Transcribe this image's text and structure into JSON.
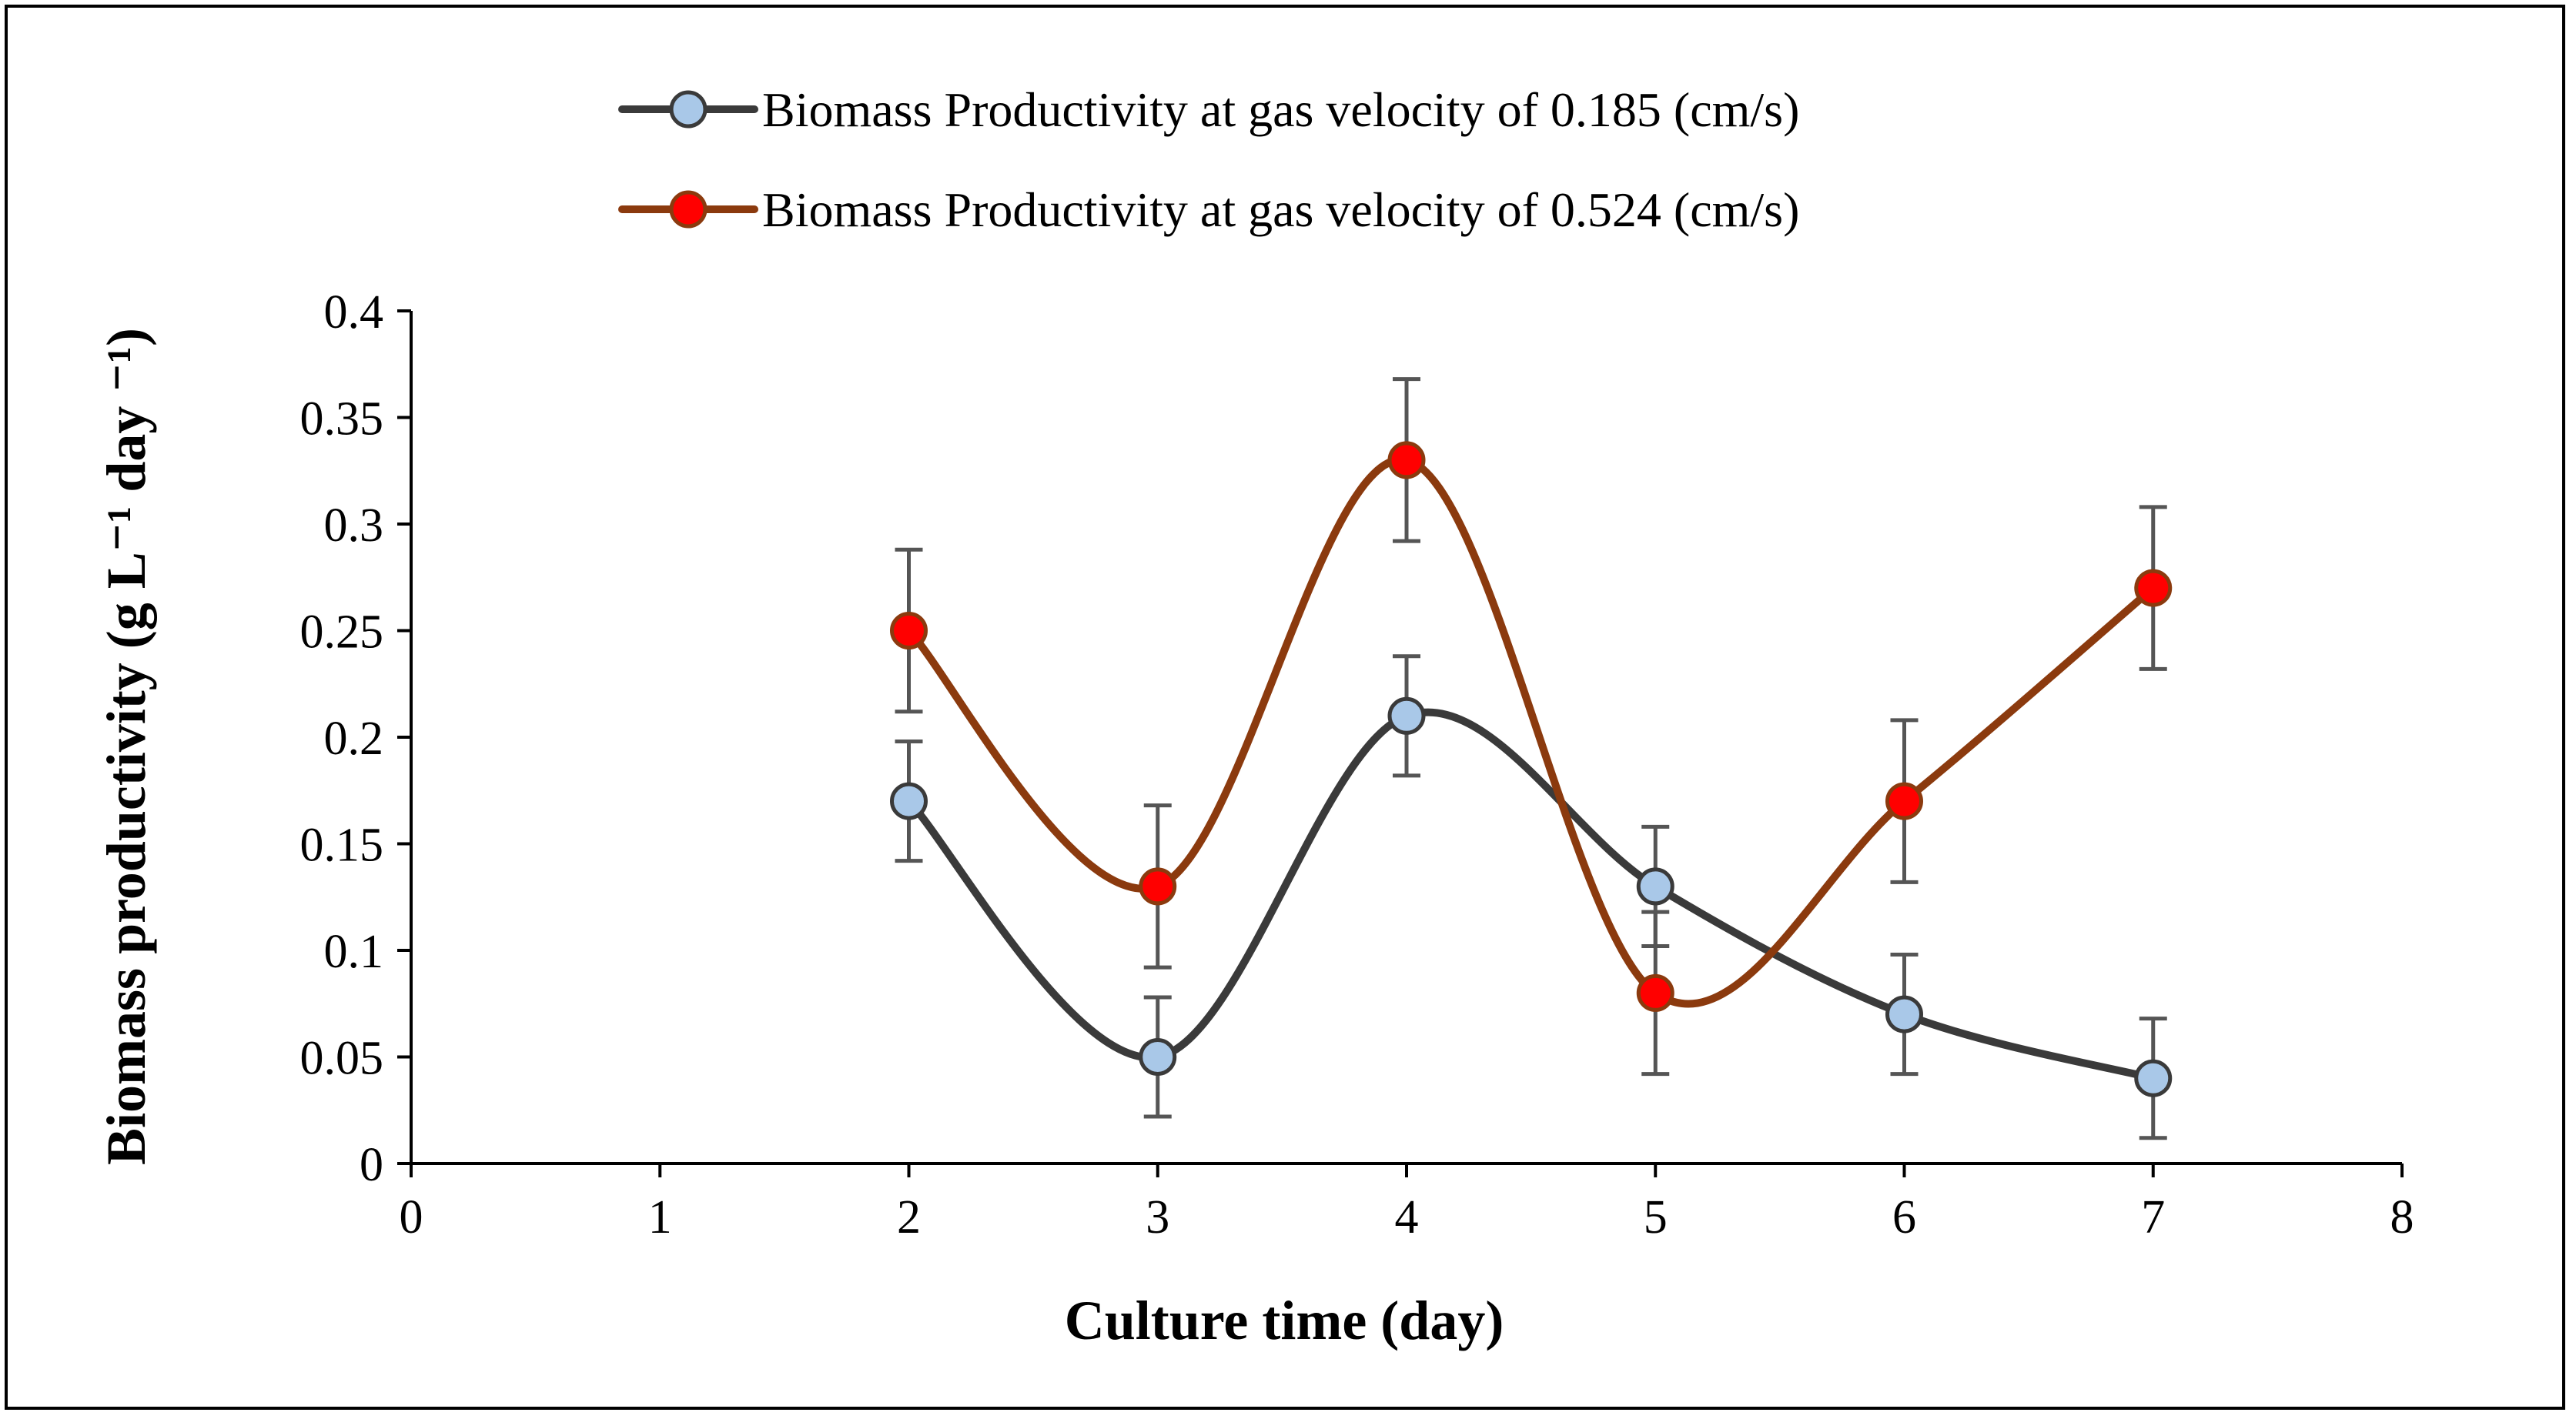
{
  "chart_data": {
    "type": "line",
    "title": "",
    "xlabel": "Culture time (day)",
    "ylabel": "Biomass productivity (g L⁻¹ day ⁻¹)",
    "xlim": [
      0,
      8
    ],
    "ylim": [
      0,
      0.4
    ],
    "x_ticks": [
      0,
      1,
      2,
      3,
      4,
      5,
      6,
      7,
      8
    ],
    "x_tick_labels": [
      "0",
      "1",
      "2",
      "3",
      "4",
      "5",
      "6",
      "7",
      "8"
    ],
    "y_ticks": [
      0,
      0.05,
      0.1,
      0.15,
      0.2,
      0.25,
      0.3,
      0.35,
      0.4
    ],
    "y_tick_labels": [
      "0",
      "0.05",
      "0.1",
      "0.15",
      "0.2",
      "0.25",
      "0.3",
      "0.35",
      "0.4"
    ],
    "grid": false,
    "legend_position": "top-center",
    "series": [
      {
        "name": "Biomass Productivity at gas velocity of 0.185 (cm/s)",
        "x": [
          2,
          3,
          4,
          5,
          6,
          7
        ],
        "values": [
          0.17,
          0.05,
          0.21,
          0.13,
          0.07,
          0.04
        ],
        "error": [
          0.028,
          0.028,
          0.028,
          0.028,
          0.028,
          0.028
        ],
        "line_color": "#3a3a3a",
        "marker_fill": "#a9c8e8",
        "marker_edge": "#3a3a3a"
      },
      {
        "name": "Biomass Productivity at gas velocity of 0.524 (cm/s)",
        "x": [
          2,
          3,
          4,
          5,
          6,
          7
        ],
        "values": [
          0.25,
          0.13,
          0.33,
          0.08,
          0.17,
          0.27
        ],
        "error": [
          0.038,
          0.038,
          0.038,
          0.038,
          0.038,
          0.038
        ],
        "line_color": "#8b3a0e",
        "marker_fill": "#ff0000",
        "marker_edge": "#8b3a0e"
      }
    ]
  }
}
